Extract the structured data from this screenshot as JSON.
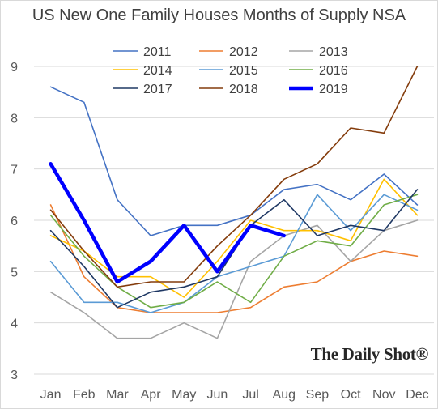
{
  "chart_data": {
    "type": "line",
    "title": "US New One Family Houses Months of Supply NSA",
    "xlabel": "",
    "ylabel": "",
    "categories": [
      "Jan",
      "Feb",
      "Mar",
      "Apr",
      "May",
      "Jun",
      "Jul",
      "Aug",
      "Sep",
      "Oct",
      "Nov",
      "Dec"
    ],
    "ylim": [
      3,
      9
    ],
    "yticks": [
      "3",
      "4",
      "5",
      "6",
      "7",
      "8",
      "9"
    ],
    "grid": true,
    "legend_position": "top",
    "series": [
      {
        "name": "2011",
        "color": "#4472c4",
        "width": 1.6,
        "values": [
          8.6,
          8.3,
          6.4,
          5.7,
          5.9,
          5.9,
          6.1,
          6.6,
          6.7,
          6.4,
          6.9,
          6.3
        ]
      },
      {
        "name": "2012",
        "color": "#ed7d31",
        "width": 1.6,
        "values": [
          6.3,
          4.9,
          4.3,
          4.2,
          4.2,
          4.2,
          4.3,
          4.7,
          4.8,
          5.2,
          5.4,
          5.3
        ]
      },
      {
        "name": "2013",
        "color": "#a5a5a5",
        "width": 1.6,
        "values": [
          4.6,
          4.2,
          3.7,
          3.7,
          4.0,
          3.7,
          5.2,
          5.7,
          5.9,
          5.2,
          5.8,
          6.0
        ]
      },
      {
        "name": "2014",
        "color": "#ffc000",
        "width": 1.6,
        "values": [
          5.7,
          5.4,
          4.9,
          4.9,
          4.5,
          5.2,
          6.0,
          5.8,
          5.8,
          5.6,
          6.8,
          6.1
        ]
      },
      {
        "name": "2015",
        "color": "#5b9bd5",
        "width": 1.6,
        "values": [
          5.2,
          4.4,
          4.4,
          4.2,
          4.4,
          4.9,
          5.1,
          5.3,
          6.5,
          5.8,
          6.5,
          6.2
        ]
      },
      {
        "name": "2016",
        "color": "#70ad47",
        "width": 1.6,
        "values": [
          6.1,
          5.3,
          4.7,
          4.3,
          4.4,
          4.8,
          4.4,
          5.3,
          5.6,
          5.5,
          6.3,
          6.5
        ]
      },
      {
        "name": "2017",
        "color": "#1f3864",
        "width": 1.6,
        "values": [
          5.8,
          5.1,
          4.3,
          4.6,
          4.7,
          4.9,
          5.9,
          6.4,
          5.7,
          5.9,
          5.8,
          6.6
        ]
      },
      {
        "name": "2018",
        "color": "#843c0c",
        "width": 1.6,
        "values": [
          6.2,
          5.4,
          4.7,
          4.8,
          4.8,
          5.5,
          6.1,
          6.8,
          7.1,
          7.8,
          7.7,
          9.0
        ]
      },
      {
        "name": "2019",
        "color": "#0000ff",
        "width": 4.5,
        "values": [
          7.1,
          6.0,
          4.8,
          5.2,
          5.9,
          5.0,
          5.9,
          5.7,
          null,
          null,
          null,
          null
        ]
      }
    ]
  },
  "watermark": "The Daily Shot®"
}
